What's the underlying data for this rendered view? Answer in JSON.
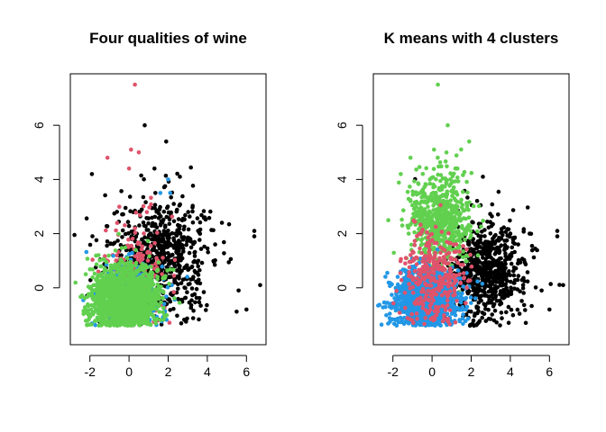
{
  "chart_data": [
    {
      "type": "scatter",
      "title": "Four qualities of wine",
      "xlabel": "",
      "ylabel": "",
      "xlim": [
        -3.0,
        7.0
      ],
      "ylim": [
        -2.1,
        7.9
      ],
      "x_ticks": [
        -2,
        0,
        2,
        4,
        6
      ],
      "y_ticks": [
        0,
        2,
        4,
        6
      ],
      "x_tick_labels": [
        "-2",
        "0",
        "2",
        "4",
        "6"
      ],
      "y_tick_labels": [
        "0",
        "2",
        "4",
        "6"
      ],
      "grid": false,
      "series": [
        {
          "color": "#000000",
          "center": [
            1.6,
            1.1
          ],
          "spread": [
            1.3,
            1.1
          ],
          "count": 700,
          "points": [
            [
              6.7,
              0.1
            ],
            [
              6.4,
              2.1
            ],
            [
              6.4,
              1.9
            ],
            [
              6.0,
              -0.8
            ],
            [
              5.6,
              -0.1
            ],
            [
              4.4,
              1.6
            ],
            [
              0.8,
              6.0
            ],
            [
              1.9,
              5.4
            ],
            [
              1.3,
              4.4
            ],
            [
              -1.9,
              4.2
            ],
            [
              2.6,
              4.1
            ]
          ]
        },
        {
          "color": "#DF536B",
          "center": [
            0.3,
            0.6
          ],
          "spread": [
            0.9,
            1.0
          ],
          "count": 180,
          "points": [
            [
              0.3,
              7.5
            ],
            [
              0.1,
              5.1
            ],
            [
              0.5,
              5.0
            ],
            [
              -1.1,
              4.8
            ],
            [
              0.0,
              4.4
            ]
          ]
        },
        {
          "color": "#2297E6",
          "center": [
            0.1,
            -0.2
          ],
          "spread": [
            0.9,
            0.7
          ],
          "count": 180,
          "points": [
            [
              2.0,
              4.0
            ],
            [
              2.1,
              3.5
            ],
            [
              1.6,
              3.5
            ]
          ]
        },
        {
          "color": "#61D04F",
          "center": [
            -0.2,
            -0.4
          ],
          "spread": [
            0.8,
            0.6
          ],
          "count": 1500,
          "points": []
        }
      ]
    },
    {
      "type": "scatter",
      "title": "K means with 4 clusters",
      "xlabel": "",
      "ylabel": "",
      "xlim": [
        -3.0,
        7.0
      ],
      "ylim": [
        -2.1,
        7.9
      ],
      "x_ticks": [
        -2,
        0,
        2,
        4,
        6
      ],
      "y_ticks": [
        0,
        2,
        4,
        6
      ],
      "x_tick_labels": [
        "-2",
        "0",
        "2",
        "4",
        "6"
      ],
      "y_tick_labels": [
        "0",
        "2",
        "4",
        "6"
      ],
      "grid": false,
      "series": [
        {
          "color": "#000000",
          "center": [
            2.8,
            0.6
          ],
          "spread": [
            1.0,
            0.9
          ],
          "count": 650,
          "points": [
            [
              6.7,
              0.1
            ],
            [
              6.4,
              2.1
            ],
            [
              6.4,
              1.9
            ],
            [
              6.0,
              -0.8
            ],
            [
              5.6,
              -0.1
            ],
            [
              4.4,
              1.6
            ],
            [
              2.6,
              4.1
            ],
            [
              4.0,
              2.0
            ]
          ]
        },
        {
          "color": "#61D04F",
          "center": [
            0.4,
            2.5
          ],
          "spread": [
            0.8,
            0.9
          ],
          "count": 650,
          "points": [
            [
              0.3,
              7.5
            ],
            [
              0.8,
              6.0
            ],
            [
              1.9,
              5.4
            ],
            [
              0.1,
              5.1
            ],
            [
              -1.1,
              4.8
            ],
            [
              -1.6,
              4.2
            ],
            [
              1.3,
              4.4
            ]
          ]
        },
        {
          "color": "#2297E6",
          "center": [
            -0.3,
            -0.4
          ],
          "spread": [
            0.8,
            0.55
          ],
          "count": 1400,
          "points": []
        },
        {
          "color": "#DF536B",
          "center": [
            0.1,
            0.3
          ],
          "spread": [
            0.8,
            0.9
          ],
          "count": 320,
          "points": []
        }
      ]
    }
  ]
}
